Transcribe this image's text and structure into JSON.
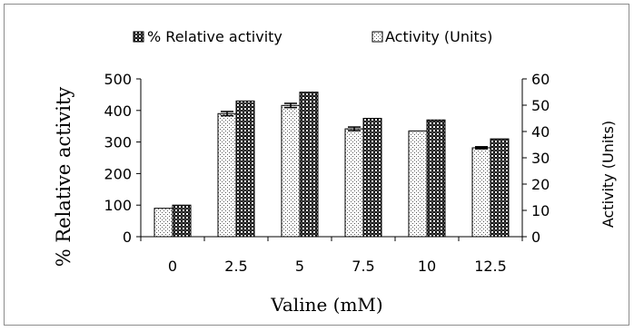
{
  "chart_data": {
    "type": "bar",
    "categories": [
      "0",
      "2.5",
      "5",
      "7.5",
      "10",
      "12.5"
    ],
    "series": [
      {
        "name": "% Relative activity",
        "axis": "left",
        "pattern": "dark-checker",
        "values": [
          100,
          430,
          458,
          375,
          370,
          310
        ]
      },
      {
        "name": "Activity (Units)",
        "axis": "right",
        "pattern": "dotted",
        "values": [
          10.8,
          46.8,
          49.9,
          41,
          40.2,
          33.8
        ],
        "error": [
          0,
          0.8,
          0.8,
          0.7,
          0,
          0.4
        ]
      }
    ],
    "xlabel": "Valine (mM)",
    "ylabel_left": "% Relative activity",
    "ylabel_right": "Activity (Units)",
    "ylim_left": [
      0,
      500
    ],
    "ylim_right": [
      0,
      60
    ],
    "yticks_left": [
      "0",
      "100",
      "200",
      "300",
      "400",
      "500"
    ],
    "yticks_right": [
      "0",
      "10",
      "20",
      "30",
      "40",
      "50",
      "60"
    ],
    "legend": {
      "placement": "top-center",
      "entries": [
        "% Relative activity",
        "Activity (Units)"
      ]
    },
    "grid": false
  }
}
